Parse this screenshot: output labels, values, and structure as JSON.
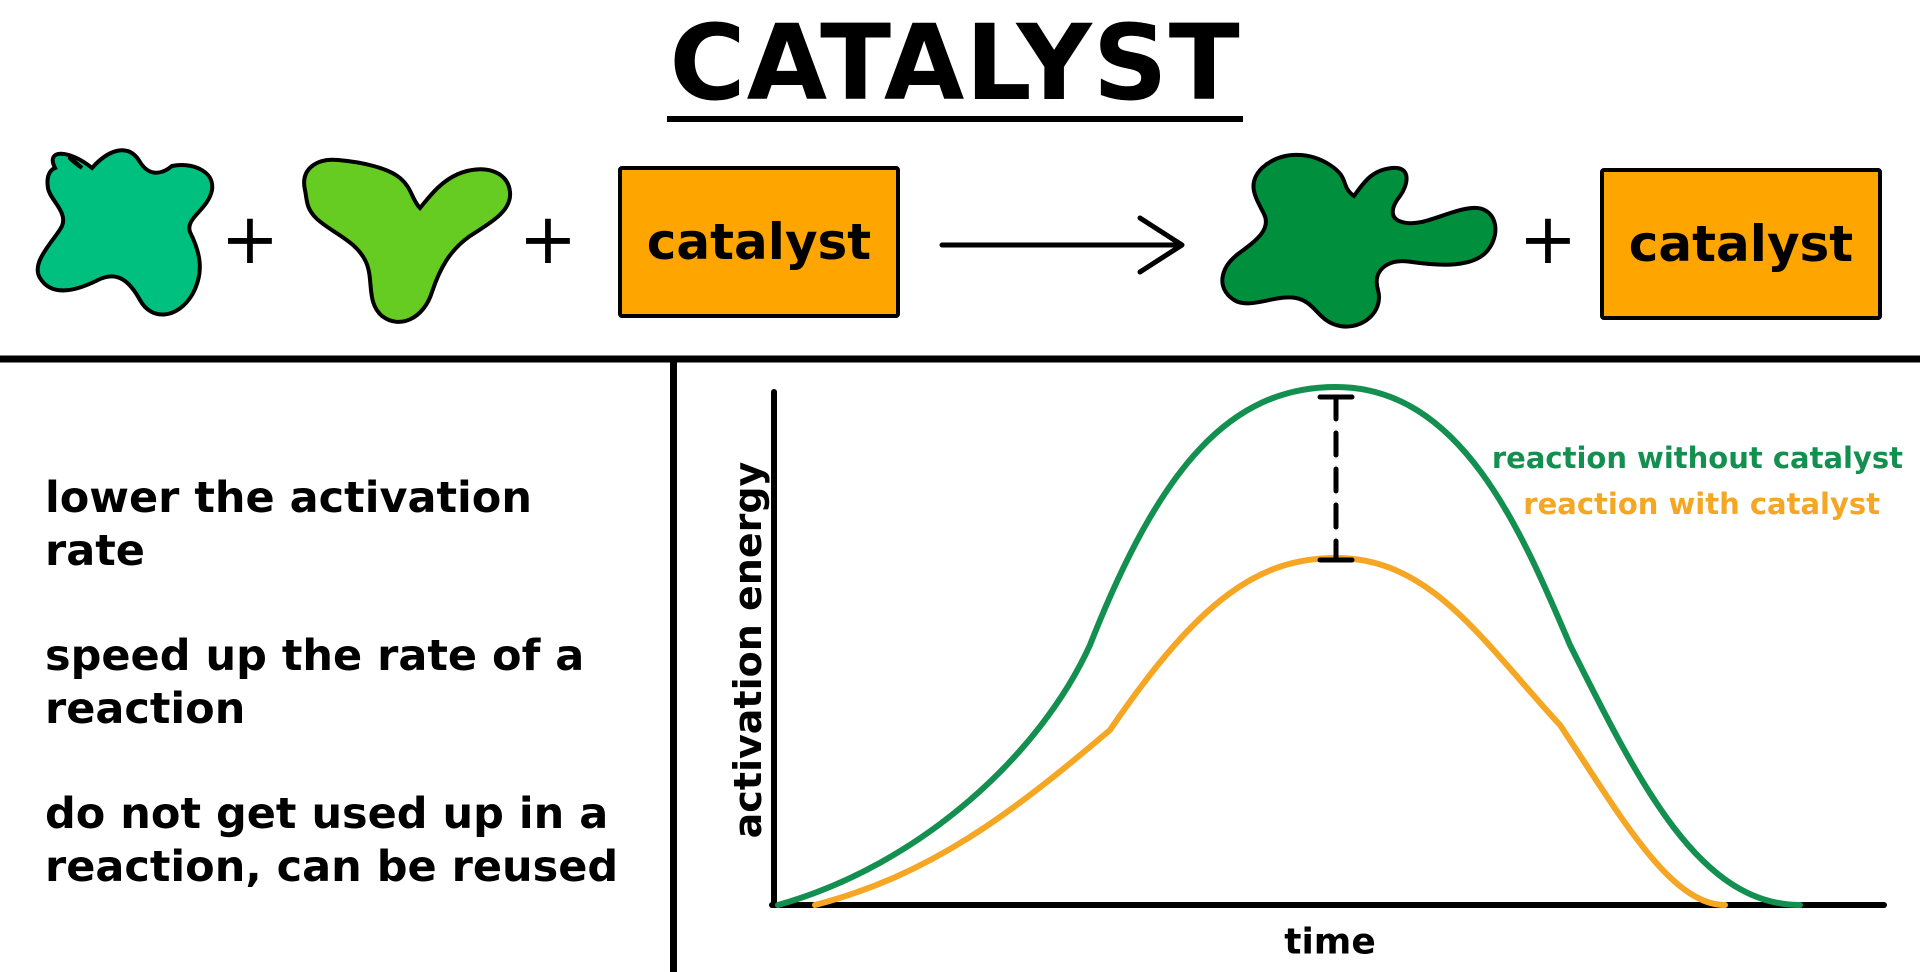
{
  "title": "CATALYST",
  "equation": {
    "reactant_1": "green-blob-x-shape",
    "plus_1": "+",
    "reactant_2": "green-blob-y-shape",
    "plus_2": "+",
    "catalyst_left_label": "catalyst",
    "arrow": "right-arrow",
    "product": "dark-green-blob",
    "plus_3": "+",
    "catalyst_right_label": "catalyst"
  },
  "notes": [
    "lower the activation rate",
    "speed up the rate of a reaction",
    "do not get used up in a reaction, can be reused"
  ],
  "colors": {
    "reactant_1": "#00C07F",
    "reactant_2": "#66CC22",
    "product": "#008F3D",
    "catalyst_box": "#FFA500",
    "curve_without": "#138F4F",
    "curve_with": "#F5A623"
  },
  "chart_data": {
    "type": "line",
    "xlabel": "time",
    "ylabel": "activation energy",
    "series": [
      {
        "name": "reaction without catalyst",
        "color": "#138F4F",
        "peak": 1.0
      },
      {
        "name": "reaction with catalyst",
        "color": "#F5A623",
        "peak": 0.67
      }
    ],
    "annotation": "dashed-bracket-between-peaks"
  }
}
